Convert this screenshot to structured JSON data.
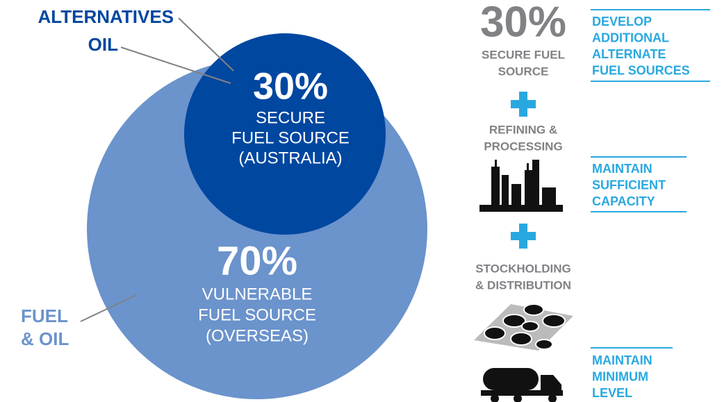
{
  "circles": {
    "outer": {
      "labels": [
        [
          "ALTERNATIVES"
        ],
        [
          "OIL"
        ]
      ]
    },
    "inner": {
      "percent": "30%",
      "lines": [
        "SECURE",
        "FUEL SOURCE",
        "(AUSTRALIA)"
      ]
    },
    "main": {
      "percent": "70%",
      "lines": [
        "VULNERABLE",
        "FUEL SOURCE",
        "(OVERSEAS)"
      ]
    },
    "fuel_label": [
      "FUEL",
      "& OIL"
    ]
  },
  "steps": [
    {
      "percent": "30%",
      "lines": [
        "SECURE FUEL",
        "SOURCE"
      ]
    },
    {
      "lines": [
        "REFINING &",
        "PROCESSING"
      ]
    },
    {
      "lines": [
        "STOCKHOLDING",
        "& DISTRIBUTION"
      ]
    }
  ],
  "actions": [
    {
      "lines": [
        "DEVELOP",
        "ADDITIONAL",
        "ALTERNATE",
        "FUEL SOURCES"
      ]
    },
    {
      "lines": [
        "MAINTAIN",
        "SUFFICIENT",
        "CAPACITY"
      ]
    },
    {
      "lines": [
        "MAINTAIN",
        "MINIMUM",
        "LEVEL"
      ]
    }
  ]
}
